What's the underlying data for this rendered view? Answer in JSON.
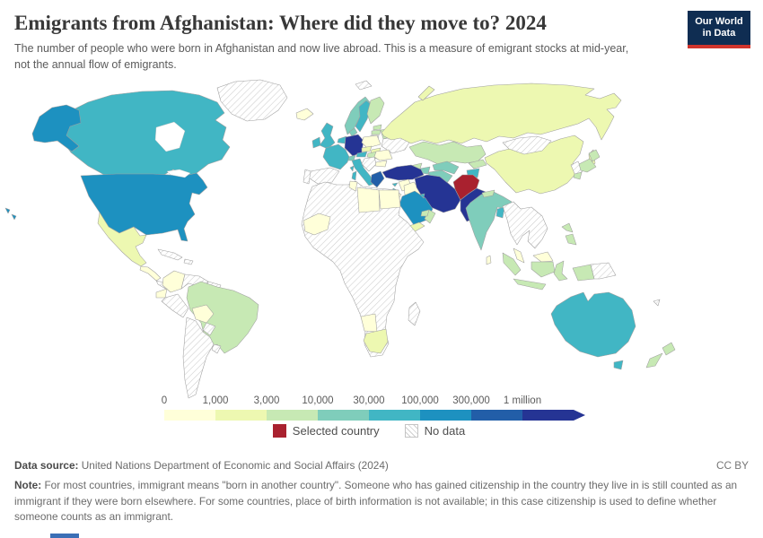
{
  "header": {
    "title": "Emigrants from Afghanistan: Where did they move to? 2024",
    "subtitle": "The number of people who were born in Afghanistan and now live abroad. This is a measure of emigrant stocks at mid-year, not the annual flow of emigrants.",
    "logo": {
      "line1": "Our World",
      "line2": "in Data",
      "bg": "#0f2d52",
      "accent": "#d0342c"
    }
  },
  "legend": {
    "ticks": [
      "0",
      "1,000",
      "3,000",
      "10,000",
      "30,000",
      "100,000",
      "300,000",
      "1 million"
    ],
    "bin_colors": [
      "#ffffd9",
      "#edf8b1",
      "#c7e9b4",
      "#7fcdbb",
      "#41b6c4",
      "#1d91c0",
      "#225ea8",
      "#253494"
    ],
    "selected_label": "Selected country",
    "selected_color": "#a9212f",
    "nodata_label": "No data"
  },
  "footer": {
    "datasource_label": "Data source:",
    "datasource": "United Nations Department of Economic and Social Affairs (2024)",
    "license": "CC BY",
    "note_label": "Note:",
    "note": "For most countries, immigrant means \"born in another country\". Someone who has gained citizenship in the country they live in is still counted as an immigrant if they were born elsewhere. For some countries, place of birth information is not available; in this case citizenship is used to define whether someone counts as an immigrant."
  },
  "chart_data": {
    "type": "choropleth",
    "title": "Emigrants from Afghanistan: Where did they move to? 2024",
    "year": "2024",
    "unit": "people (emigrant stock at mid-year)",
    "scale_type": "logarithmic bins",
    "bin_labels": [
      "0–1,000",
      "1,000–3,000",
      "3,000–10,000",
      "10,000–30,000",
      "30,000–100,000",
      "100,000–300,000",
      "300,000–1 million",
      "1 million+"
    ],
    "selected_country": "Afghanistan",
    "countries": [
      {
        "id": "afghanistan",
        "name": "Afghanistan",
        "bin": "selected"
      },
      {
        "id": "iran",
        "name": "Iran",
        "bin": 7
      },
      {
        "id": "pakistan",
        "name": "Pakistan",
        "bin": 7
      },
      {
        "id": "turkey",
        "name": "Turkey",
        "bin": 7
      },
      {
        "id": "germany",
        "name": "Germany",
        "bin": 7
      },
      {
        "id": "greece",
        "name": "Greece",
        "bin": 6
      },
      {
        "id": "usa",
        "name": "United States",
        "bin": 5
      },
      {
        "id": "saudi-arabia",
        "name": "Saudi Arabia",
        "bin": 5
      },
      {
        "id": "canada",
        "name": "Canada",
        "bin": 4
      },
      {
        "id": "united-kingdom",
        "name": "United Kingdom",
        "bin": 4
      },
      {
        "id": "ireland",
        "name": "Ireland",
        "bin": 4
      },
      {
        "id": "france",
        "name": "France",
        "bin": 4
      },
      {
        "id": "sweden",
        "name": "Sweden",
        "bin": 4
      },
      {
        "id": "italy",
        "name": "Italy",
        "bin": 4
      },
      {
        "id": "austria",
        "name": "Austria",
        "bin": 4
      },
      {
        "id": "benelux",
        "name": "Netherlands & Belgium",
        "bin": 4
      },
      {
        "id": "australia",
        "name": "Australia",
        "bin": 4
      },
      {
        "id": "tajikistan",
        "name": "Tajikistan",
        "bin": 4
      },
      {
        "id": "bangladesh",
        "name": "Bangladesh",
        "bin": 4
      },
      {
        "id": "israel",
        "name": "Israel",
        "bin": 4
      },
      {
        "id": "cyprus",
        "name": "Cyprus",
        "bin": 4
      },
      {
        "id": "kuwait",
        "name": "Kuwait",
        "bin": 4
      },
      {
        "id": "norway",
        "name": "Norway",
        "bin": 3
      },
      {
        "id": "denmark",
        "name": "Denmark",
        "bin": 3
      },
      {
        "id": "switzerland",
        "name": "Switzerland",
        "bin": 3
      },
      {
        "id": "india",
        "name": "India",
        "bin": 3
      },
      {
        "id": "uzbekistan",
        "name": "Uzbekistan",
        "bin": 3
      },
      {
        "id": "turkmenistan",
        "name": "Turkmenistan",
        "bin": 3
      },
      {
        "id": "azerbaijan",
        "name": "Azerbaijan",
        "bin": 3
      },
      {
        "id": "finland",
        "name": "Finland",
        "bin": 2
      },
      {
        "id": "brazil",
        "name": "Brazil",
        "bin": 2
      },
      {
        "id": "kazakhstan",
        "name": "Kazakhstan",
        "bin": 2
      },
      {
        "id": "kyrgyzstan",
        "name": "Kyrgyzstan",
        "bin": 2
      },
      {
        "id": "georgia",
        "name": "Georgia",
        "bin": 2
      },
      {
        "id": "belarus",
        "name": "Belarus",
        "bin": 2
      },
      {
        "id": "hungary",
        "name": "Hungary",
        "bin": 2
      },
      {
        "id": "estonia",
        "name": "Estonia",
        "bin": 2
      },
      {
        "id": "latvia",
        "name": "Latvia",
        "bin": 2
      },
      {
        "id": "japan",
        "name": "Japan",
        "bin": 2
      },
      {
        "id": "indonesia",
        "name": "Indonesia",
        "bin": 2
      },
      {
        "id": "philippines",
        "name": "Philippines",
        "bin": 2
      },
      {
        "id": "new-zealand",
        "name": "New Zealand",
        "bin": 2
      },
      {
        "id": "oman",
        "name": "Oman",
        "bin": 2
      },
      {
        "id": "uae",
        "name": "United Arab Emirates",
        "bin": 2
      },
      {
        "id": "nepal",
        "name": "Nepal",
        "bin": 2
      },
      {
        "id": "russia",
        "name": "Russia",
        "bin": 1
      },
      {
        "id": "china",
        "name": "China",
        "bin": 1
      },
      {
        "id": "mexico",
        "name": "Mexico",
        "bin": 1
      },
      {
        "id": "south-africa",
        "name": "South Africa",
        "bin": 1
      },
      {
        "id": "yemen",
        "name": "Yemen",
        "bin": 1
      },
      {
        "id": "czechia",
        "name": "Czechia",
        "bin": 1
      },
      {
        "id": "slovakia",
        "name": "Slovakia",
        "bin": 1
      },
      {
        "id": "iceland",
        "name": "Iceland",
        "bin": 0
      },
      {
        "id": "poland",
        "name": "Poland",
        "bin": 0
      },
      {
        "id": "romania",
        "name": "Romania",
        "bin": 0
      },
      {
        "id": "bulgaria",
        "name": "Bulgaria",
        "bin": 0
      },
      {
        "id": "syria",
        "name": "Syria",
        "bin": 0
      },
      {
        "id": "iraq",
        "name": "Iraq",
        "bin": 0
      },
      {
        "id": "jordan",
        "name": "Jordan",
        "bin": 0
      },
      {
        "id": "egypt",
        "name": "Egypt",
        "bin": 0
      },
      {
        "id": "libya",
        "name": "Libya",
        "bin": 0
      },
      {
        "id": "tunisia",
        "name": "Tunisia",
        "bin": 0
      },
      {
        "id": "west-africa",
        "name": "West Africa (Senegal, Mali, Guinea)",
        "bin": 0
      },
      {
        "id": "namibia",
        "name": "Namibia",
        "bin": 0
      },
      {
        "id": "colombia",
        "name": "Colombia",
        "bin": 0
      },
      {
        "id": "ecuador",
        "name": "Ecuador",
        "bin": 0
      },
      {
        "id": "bolivia",
        "name": "Bolivia",
        "bin": 0
      },
      {
        "id": "central-america",
        "name": "Central America (Guatemala, Honduras, Nicaragua)",
        "bin": 0
      },
      {
        "id": "malaysia",
        "name": "Malaysia",
        "bin": 0
      },
      {
        "id": "sri-lanka",
        "name": "Sri Lanka",
        "bin": 0
      },
      {
        "id": "greenland",
        "name": "Greenland",
        "bin": "no-data"
      },
      {
        "id": "spain",
        "name": "Spain",
        "bin": "no-data"
      },
      {
        "id": "portugal",
        "name": "Portugal",
        "bin": "no-data"
      },
      {
        "id": "ukraine",
        "name": "Ukraine",
        "bin": "no-data"
      },
      {
        "id": "lithuania",
        "name": "Lithuania",
        "bin": "no-data"
      },
      {
        "id": "balkans",
        "name": "Western Balkans",
        "bin": "no-data"
      },
      {
        "id": "mongolia",
        "name": "Mongolia",
        "bin": "no-data"
      },
      {
        "id": "korea",
        "name": "Korea",
        "bin": "no-data"
      },
      {
        "id": "indochina",
        "name": "Mainland Southeast Asia (Myanmar, Thailand, Vietnam, Laos, Cambodia)",
        "bin": "no-data"
      },
      {
        "id": "papua-new-guinea",
        "name": "Papua New Guinea",
        "bin": "no-data"
      },
      {
        "id": "africa-other",
        "name": "Most of Africa (Algeria, Morocco, Sub-Saharan Africa)",
        "bin": "no-data"
      },
      {
        "id": "madagascar",
        "name": "Madagascar",
        "bin": "no-data"
      },
      {
        "id": "cuba",
        "name": "Cuba",
        "bin": "no-data"
      },
      {
        "id": "hispaniola",
        "name": "Hispaniola",
        "bin": "no-data"
      },
      {
        "id": "venezuela",
        "name": "Venezuela",
        "bin": "no-data"
      },
      {
        "id": "guianas",
        "name": "Guyana, Suriname, French Guiana",
        "bin": "no-data"
      },
      {
        "id": "peru",
        "name": "Peru",
        "bin": "no-data"
      },
      {
        "id": "paraguay",
        "name": "Paraguay",
        "bin": "no-data"
      },
      {
        "id": "uruguay",
        "name": "Uruguay",
        "bin": "no-data"
      },
      {
        "id": "argentina-chile",
        "name": "Argentina & Chile",
        "bin": "no-data"
      },
      {
        "id": "costa-rica-panama",
        "name": "Costa Rica & Panama",
        "bin": "no-data"
      },
      {
        "id": "svalbard",
        "name": "Svalbard",
        "bin": "no-data"
      },
      {
        "id": "new-caledonia",
        "name": "New Caledonia",
        "bin": "no-data"
      }
    ]
  }
}
